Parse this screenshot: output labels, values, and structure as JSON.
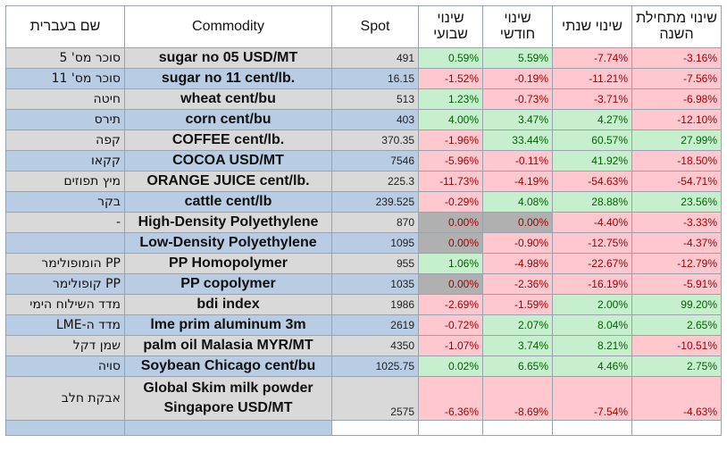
{
  "headers": {
    "hebrew": "שם בעברית",
    "commodity": "Commodity",
    "spot": "Spot",
    "weekly": "שינוי שבועי",
    "monthly": "שינוי חודשי",
    "yearly": "שינוי שנתי",
    "ytd": "שינוי מתחילת השנה"
  },
  "rows": [
    {
      "hebrew": "סוכר מס' 5",
      "commodity": "sugar no 05 USD/MT",
      "spot": "491",
      "weekly": "0.59%",
      "monthly": "5.59%",
      "yearly": "-7.74%",
      "ytd": "-3.16%"
    },
    {
      "hebrew": "סוכר מס' 11",
      "commodity": "sugar no 11 cent/lb.",
      "spot": "16.15",
      "weekly": "-1.52%",
      "monthly": "-0.19%",
      "yearly": "-11.21%",
      "ytd": "-7.56%"
    },
    {
      "hebrew": "חיטה",
      "commodity": "wheat cent/bu",
      "spot": "513",
      "weekly": "1.23%",
      "monthly": "-0.73%",
      "yearly": "-3.71%",
      "ytd": "-6.98%"
    },
    {
      "hebrew": "תירס",
      "commodity": "corn cent/bu",
      "spot": "403",
      "weekly": "4.00%",
      "monthly": "3.47%",
      "yearly": "4.27%",
      "ytd": "-12.10%"
    },
    {
      "hebrew": "קפה",
      "commodity": "COFFEE cent/lb.",
      "spot": "370.35",
      "weekly": "-1.96%",
      "monthly": "33.44%",
      "yearly": "60.57%",
      "ytd": "27.99%"
    },
    {
      "hebrew": "קקאו",
      "commodity": "COCOA USD/MT",
      "spot": "7546",
      "weekly": "-5.96%",
      "monthly": "-0.11%",
      "yearly": "41.92%",
      "ytd": "-18.50%"
    },
    {
      "hebrew": "מיץ תפוזים",
      "commodity": "ORANGE JUICE cent/lb.",
      "spot": "225.3",
      "weekly": "-11.73%",
      "monthly": "-4.19%",
      "yearly": "-54.63%",
      "ytd": "-54.71%"
    },
    {
      "hebrew": "בקר",
      "commodity": "cattle cent/lb",
      "spot": "239.525",
      "weekly": "-0.29%",
      "monthly": "4.08%",
      "yearly": "28.88%",
      "ytd": "23.56%"
    },
    {
      "hebrew": "-",
      "commodity": "High-Density Polyethylene",
      "spot": "870",
      "weekly": "0.00%",
      "monthly": "0.00%",
      "yearly": "-4.40%",
      "ytd": "-3.33%"
    },
    {
      "hebrew": "",
      "commodity": "Low-Density Polyethylene",
      "spot": "1095",
      "weekly": "0.00%",
      "monthly": "-0.90%",
      "yearly": "-12.75%",
      "ytd": "-4.37%"
    },
    {
      "hebrew": "PP הומופולימר",
      "commodity": "PP Homopolymer",
      "spot": "955",
      "weekly": "1.06%",
      "monthly": "-4.98%",
      "yearly": "-22.67%",
      "ytd": "-12.79%"
    },
    {
      "hebrew": "PP קופולימר",
      "commodity": "PP copolymer",
      "spot": "1035",
      "weekly": "0.00%",
      "monthly": "-2.36%",
      "yearly": "-16.19%",
      "ytd": "-5.91%"
    },
    {
      "hebrew": "מדד השילוח הימי",
      "commodity": "bdi index",
      "spot": "1986",
      "weekly": "-2.69%",
      "monthly": "-1.59%",
      "yearly": "2.00%",
      "ytd": "99.20%"
    },
    {
      "hebrew": "מדד ה-LME",
      "commodity": "lme prim aluminum 3m",
      "spot": "2619",
      "weekly": "-0.72%",
      "monthly": "2.07%",
      "yearly": "8.04%",
      "ytd": "2.65%"
    },
    {
      "hebrew": "שמן דקל",
      "commodity": "palm oil Malasia MYR/MT",
      "spot": "4350",
      "weekly": "-1.07%",
      "monthly": "3.74%",
      "yearly": "8.21%",
      "ytd": "-10.51%"
    },
    {
      "hebrew": "סויה",
      "commodity": "Soybean Chicago cent/bu",
      "spot": "1025.75",
      "weekly": "0.02%",
      "monthly": "6.65%",
      "yearly": "4.46%",
      "ytd": "2.75%"
    },
    {
      "hebrew": "אבקת חלב",
      "commodity": "Global Skim milk powder Singapore USD/MT",
      "spot": "2575",
      "weekly": "-6.36%",
      "monthly": "-8.69%",
      "yearly": "-7.54%",
      "ytd": "-4.63%"
    }
  ],
  "colors": {
    "positive_fill": "#c6efce",
    "negative_fill": "#ffc7ce",
    "zero_fill": "#b0b0b0",
    "hebrew_fill": "#b8cce4",
    "alt_row_fill": "#d9d9d9"
  }
}
